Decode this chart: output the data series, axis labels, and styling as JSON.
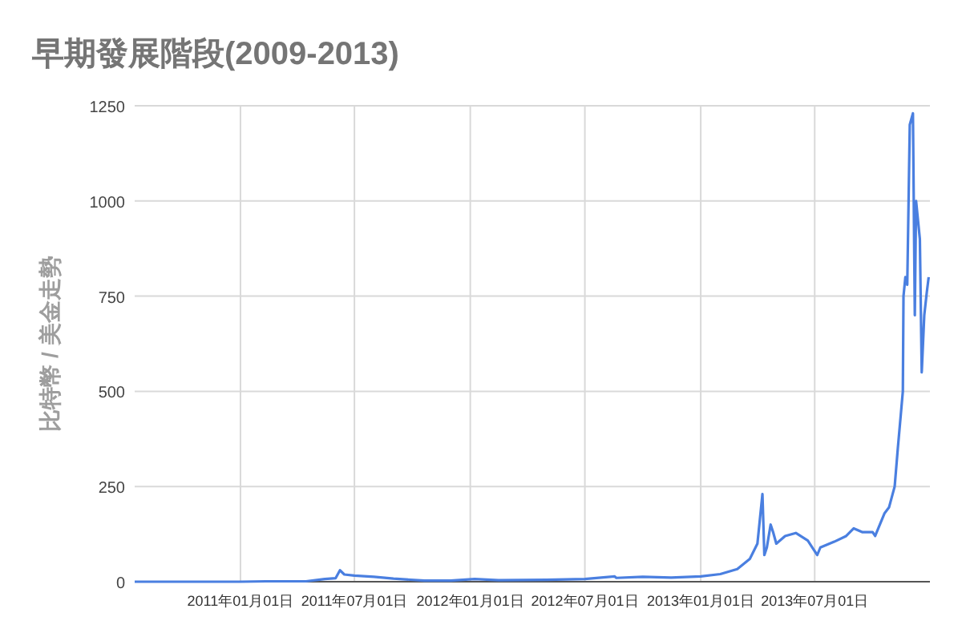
{
  "chart_data": {
    "type": "line",
    "title": "早期發展階段(2009-2013)",
    "ylabel": "比特幣 / 美金走勢",
    "x": [
      "2010-07-17",
      "2010-10-01",
      "2011-01-01",
      "2011-02-10",
      "2011-04-15",
      "2011-05-15",
      "2011-06-01",
      "2011-06-08",
      "2011-06-15",
      "2011-07-01",
      "2011-08-01",
      "2011-09-01",
      "2011-10-20",
      "2011-12-01",
      "2012-01-08",
      "2012-02-15",
      "2012-05-01",
      "2012-07-01",
      "2012-08-17",
      "2012-08-20",
      "2012-10-01",
      "2012-11-15",
      "2013-01-01",
      "2013-02-01",
      "2013-02-28",
      "2013-03-20",
      "2013-04-01",
      "2013-04-09",
      "2013-04-12",
      "2013-04-16",
      "2013-04-22",
      "2013-04-26",
      "2013-05-01",
      "2013-05-15",
      "2013-06-01",
      "2013-06-20",
      "2013-07-05",
      "2013-07-10",
      "2013-08-01",
      "2013-08-20",
      "2013-09-01",
      "2013-09-15",
      "2013-10-01",
      "2013-10-05",
      "2013-10-20",
      "2013-10-27",
      "2013-11-05",
      "2013-11-10",
      "2013-11-18",
      "2013-11-19",
      "2013-11-22",
      "2013-11-25",
      "2013-11-29",
      "2013-12-04",
      "2013-12-07",
      "2013-12-09",
      "2013-12-15",
      "2013-12-18",
      "2013-12-22",
      "2013-12-26",
      "2013-12-29"
    ],
    "values": [
      0,
      0,
      0,
      1,
      1,
      7,
      9,
      30,
      19,
      16,
      13,
      8,
      3,
      3,
      7,
      4,
      5,
      7,
      14,
      10,
      13,
      11,
      14,
      20,
      33,
      60,
      100,
      230,
      70,
      90,
      150,
      130,
      100,
      120,
      128,
      108,
      70,
      90,
      105,
      120,
      140,
      130,
      130,
      120,
      180,
      195,
      250,
      350,
      500,
      750,
      800,
      780,
      1200,
      1230,
      700,
      1000,
      900,
      550,
      700,
      760,
      800
    ],
    "color": "#4a7fe0",
    "xlim": [
      "2010-07-17",
      "2013-12-31"
    ],
    "xticks": [
      {
        "value": "2011-01-01",
        "label": "2011年01月01日"
      },
      {
        "value": "2011-07-01",
        "label": "2011年07月01日"
      },
      {
        "value": "2012-01-01",
        "label": "2012年01月01日"
      },
      {
        "value": "2012-07-01",
        "label": "2012年07月01日"
      },
      {
        "value": "2013-01-01",
        "label": "2013年01月01日"
      },
      {
        "value": "2013-07-01",
        "label": "2013年07月01日"
      }
    ],
    "ylim": [
      0,
      1250
    ],
    "yticks": [
      0,
      250,
      500,
      750,
      1000,
      1250
    ],
    "grid": true,
    "marker": "none"
  }
}
